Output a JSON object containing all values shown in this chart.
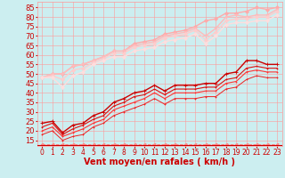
{
  "xlabel": "Vent moyen/en rafales ( km/h )",
  "bg_color": "#cceef0",
  "grid_color": "#ff9999",
  "xlim": [
    -0.5,
    23.5
  ],
  "ylim": [
    12,
    88
  ],
  "yticks": [
    15,
    20,
    25,
    30,
    35,
    40,
    45,
    50,
    55,
    60,
    65,
    70,
    75,
    80,
    85
  ],
  "xticks": [
    0,
    1,
    2,
    3,
    4,
    5,
    6,
    7,
    8,
    9,
    10,
    11,
    12,
    13,
    14,
    15,
    16,
    17,
    18,
    19,
    20,
    21,
    22,
    23
  ],
  "series": [
    {
      "x": [
        0,
        1,
        2,
        3,
        4,
        5,
        6,
        7,
        8,
        9,
        10,
        11,
        12,
        13,
        14,
        15,
        16,
        17,
        18,
        19,
        20,
        21,
        22,
        23
      ],
      "y": [
        48,
        50,
        50,
        54,
        55,
        57,
        59,
        62,
        62,
        66,
        67,
        68,
        71,
        72,
        73,
        75,
        78,
        79,
        82,
        82,
        83,
        85,
        84,
        85
      ],
      "color": "#ffaaaa",
      "marker": "D",
      "markersize": 2,
      "linewidth": 1.0
    },
    {
      "x": [
        0,
        1,
        2,
        3,
        4,
        5,
        6,
        7,
        8,
        9,
        10,
        11,
        12,
        13,
        14,
        15,
        16,
        17,
        18,
        19,
        20,
        21,
        22,
        23
      ],
      "y": [
        48,
        50,
        50,
        54,
        55,
        57,
        59,
        62,
        62,
        65,
        66,
        67,
        70,
        71,
        72,
        74,
        70,
        74,
        80,
        81,
        80,
        81,
        81,
        84
      ],
      "color": "#ffbbbb",
      "marker": "v",
      "markersize": 2,
      "linewidth": 1.0
    },
    {
      "x": [
        0,
        1,
        2,
        3,
        4,
        5,
        6,
        7,
        8,
        9,
        10,
        11,
        12,
        13,
        14,
        15,
        16,
        17,
        18,
        19,
        20,
        21,
        22,
        23
      ],
      "y": [
        48,
        49,
        47,
        52,
        53,
        56,
        58,
        61,
        61,
        64,
        65,
        66,
        69,
        70,
        71,
        73,
        68,
        72,
        78,
        79,
        79,
        80,
        80,
        83
      ],
      "color": "#ffcccc",
      "marker": "D",
      "markersize": 2,
      "linewidth": 1.0
    },
    {
      "x": [
        0,
        1,
        2,
        3,
        4,
        5,
        6,
        7,
        8,
        9,
        10,
        11,
        12,
        13,
        14,
        15,
        16,
        17,
        18,
        19,
        20,
        21,
        22,
        23
      ],
      "y": [
        48,
        48,
        43,
        49,
        51,
        55,
        57,
        59,
        59,
        62,
        63,
        64,
        67,
        68,
        69,
        71,
        66,
        70,
        76,
        77,
        77,
        78,
        78,
        81
      ],
      "color": "#ffdddd",
      "marker": "D",
      "markersize": 2,
      "linewidth": 1.0
    },
    {
      "x": [
        0,
        1,
        2,
        3,
        4,
        5,
        6,
        7,
        8,
        9,
        10,
        11,
        12,
        13,
        14,
        15,
        16,
        17,
        18,
        19,
        20,
        21,
        22,
        23
      ],
      "y": [
        24,
        25,
        19,
        23,
        24,
        28,
        30,
        35,
        37,
        40,
        41,
        44,
        41,
        44,
        44,
        44,
        45,
        45,
        50,
        51,
        57,
        57,
        55,
        55
      ],
      "color": "#cc0000",
      "marker": "+",
      "markersize": 3,
      "linewidth": 1.0
    },
    {
      "x": [
        0,
        1,
        2,
        3,
        4,
        5,
        6,
        7,
        8,
        9,
        10,
        11,
        12,
        13,
        14,
        15,
        16,
        17,
        18,
        19,
        20,
        21,
        22,
        23
      ],
      "y": [
        22,
        24,
        18,
        21,
        23,
        26,
        28,
        33,
        35,
        38,
        39,
        42,
        39,
        42,
        42,
        42,
        43,
        43,
        47,
        48,
        53,
        54,
        53,
        53
      ],
      "color": "#dd1111",
      "marker": "+",
      "markersize": 2,
      "linewidth": 0.8
    },
    {
      "x": [
        0,
        1,
        2,
        3,
        4,
        5,
        6,
        7,
        8,
        9,
        10,
        11,
        12,
        13,
        14,
        15,
        16,
        17,
        18,
        19,
        20,
        21,
        22,
        23
      ],
      "y": [
        20,
        22,
        17,
        19,
        21,
        24,
        26,
        31,
        33,
        35,
        37,
        40,
        37,
        40,
        40,
        40,
        41,
        41,
        45,
        46,
        51,
        52,
        51,
        51
      ],
      "color": "#ff3333",
      "marker": "+",
      "markersize": 2,
      "linewidth": 0.8
    },
    {
      "x": [
        0,
        1,
        2,
        3,
        4,
        5,
        6,
        7,
        8,
        9,
        10,
        11,
        12,
        13,
        14,
        15,
        16,
        17,
        18,
        19,
        20,
        21,
        22,
        23
      ],
      "y": [
        18,
        20,
        15,
        17,
        18,
        22,
        24,
        28,
        30,
        32,
        34,
        37,
        34,
        37,
        37,
        37,
        38,
        38,
        42,
        43,
        47,
        49,
        48,
        48
      ],
      "color": "#ee2222",
      "marker": "+",
      "markersize": 2,
      "linewidth": 0.7
    },
    {
      "x": [
        0,
        1,
        2,
        3,
        4,
        5,
        6,
        7,
        8,
        9,
        10,
        11,
        12,
        13,
        14,
        15,
        16,
        17,
        18,
        19,
        20,
        21,
        22,
        23
      ],
      "y": [
        13,
        13,
        13,
        13,
        13,
        13,
        13,
        13,
        13,
        13,
        13,
        13,
        13,
        13,
        13,
        13,
        13,
        13,
        13,
        13,
        13,
        13,
        13,
        13
      ],
      "color": "#ff8888",
      "marker": "<",
      "markersize": 2,
      "linewidth": 0.7,
      "linestyle": "--"
    }
  ],
  "xlabel_color": "#cc0000",
  "xlabel_fontsize": 7,
  "tick_color": "#cc0000",
  "tick_fontsize": 5.5,
  "ytick_fontsize": 6
}
